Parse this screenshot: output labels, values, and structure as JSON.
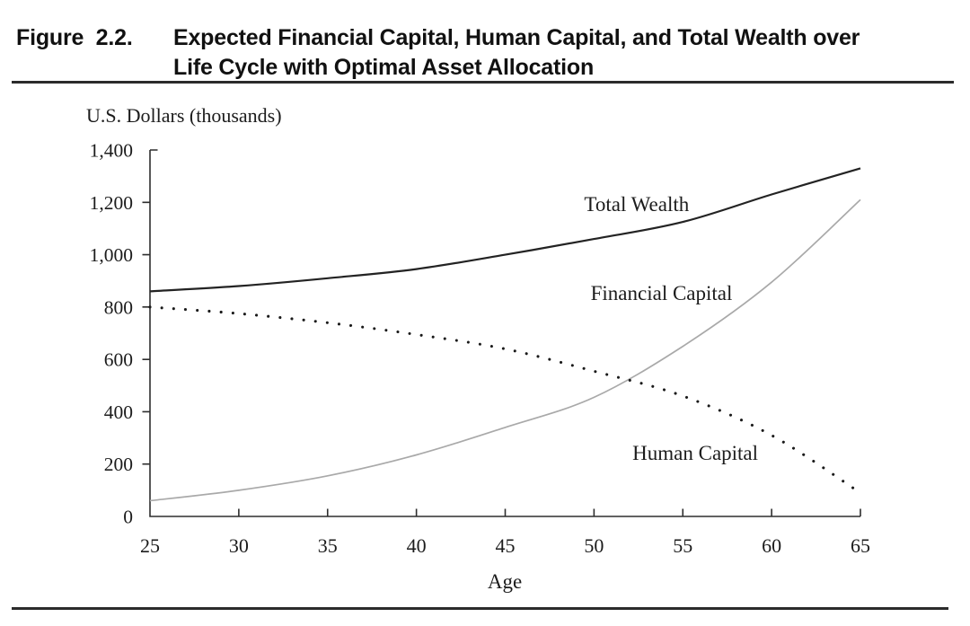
{
  "figure": {
    "label": "Figure  2.2.",
    "title_line1": "Expected Financial Capital, Human Capital, and Total Wealth over",
    "title_line2": "Life Cycle with Optimal Asset Allocation"
  },
  "chart_data": {
    "type": "line",
    "title": "Expected Financial Capital, Human Capital, and Total Wealth over Life Cycle with Optimal Asset Allocation",
    "ylabel": "U.S. Dollars (thousands)",
    "xlabel": "Age",
    "grid": false,
    "legend": "inline-annotations",
    "xlim": [
      25,
      65
    ],
    "ylim": [
      0,
      1400
    ],
    "x": [
      25,
      30,
      35,
      40,
      45,
      50,
      55,
      60,
      65
    ],
    "x_tick_labels": [
      "25",
      "30",
      "35",
      "40",
      "45",
      "50",
      "55",
      "60",
      "65"
    ],
    "y_tick_values": [
      0,
      200,
      400,
      600,
      800,
      1000,
      1200,
      1400
    ],
    "y_tick_labels": [
      "0",
      "200",
      "400",
      "600",
      "800",
      "1,000",
      "1,200",
      "1,400"
    ],
    "series": [
      {
        "name": "Total Wealth",
        "style": "solid",
        "color": "#232323",
        "width": 2.2,
        "values": [
          860,
          880,
          910,
          945,
          1000,
          1060,
          1125,
          1230,
          1330
        ]
      },
      {
        "name": "Financial Capital",
        "style": "solid",
        "color": "#a9a9a9",
        "width": 1.7,
        "values": [
          60,
          100,
          155,
          235,
          340,
          455,
          650,
          895,
          1210
        ]
      },
      {
        "name": "Human Capital",
        "style": "dotted",
        "color": "#1a1a1a",
        "width": 3.1,
        "values": [
          800,
          775,
          740,
          695,
          640,
          555,
          460,
          310,
          90
        ]
      }
    ],
    "annotations": [
      {
        "text": "Total Wealth",
        "x": 52.4,
        "y": 1194
      },
      {
        "text": "Financial Capital",
        "x": 53.8,
        "y": 855
      },
      {
        "text": "Human Capital",
        "x": 55.7,
        "y": 244
      }
    ]
  }
}
